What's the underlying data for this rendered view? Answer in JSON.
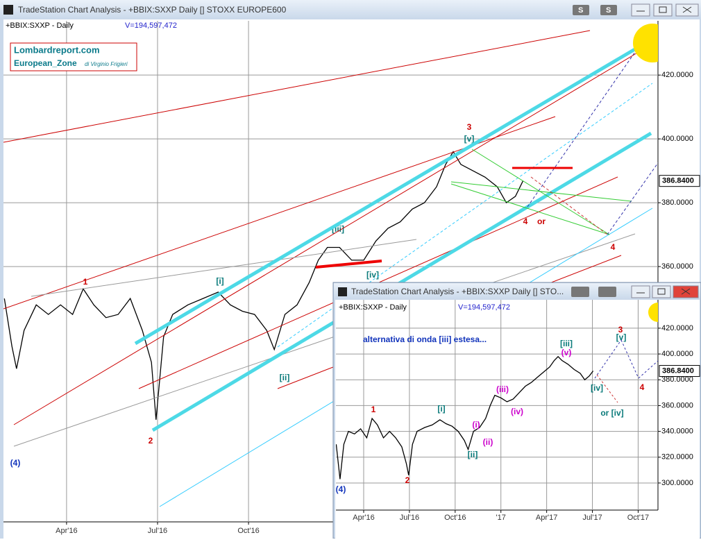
{
  "main_window": {
    "title": "TradeStation Chart Analysis - +BBIX:SXXP Daily [] STOXX EUROPE600",
    "buttons": [
      "S",
      "S"
    ],
    "logo": {
      "site": "Lombardreport.com",
      "zone": "European_Zone",
      "author": "di Virginio Frigieri"
    }
  },
  "inset_window": {
    "title": "TradeStation Chart Analysis - +BBIX:SXXP Daily [] STO..."
  },
  "chart_data": [
    {
      "type": "line",
      "volume_label": "V=194,597,472",
      "last_value_label": "386.8400",
      "x": [
        0.95,
        1.2,
        1.35,
        1.6,
        2,
        2.4,
        2.8,
        3.2,
        3.55,
        3.9,
        4.3,
        4.7,
        5.1,
        5.5,
        5.8,
        5.95,
        6.2,
        6.5,
        7,
        7.5,
        8,
        8.4,
        8.8,
        9.2,
        9.6,
        9.85,
        10.2,
        10.6,
        11,
        11.3,
        11.6,
        12,
        12.4,
        12.8,
        13.2,
        13.6,
        14,
        14.4,
        14.8,
        15.2,
        15.5,
        15.75,
        16,
        16.4,
        16.8,
        17.2,
        17.5,
        17.8,
        18.05
      ],
      "series": [
        {
          "name": "+BBIX:SXXP - Daily",
          "color": "#000000",
          "values": [
            350,
            335,
            328,
            340,
            348,
            345,
            348,
            345,
            353,
            348,
            344,
            345,
            350,
            340,
            330,
            312,
            338,
            345,
            348,
            350,
            352,
            348,
            346,
            345,
            340,
            334,
            345,
            348,
            355,
            362,
            366,
            366,
            362,
            362,
            368,
            372,
            374,
            378,
            380,
            385,
            392,
            396,
            392,
            390,
            388,
            385,
            380,
            382,
            386.84
          ]
        }
      ],
      "xlim": [
        0.92,
        22.5
      ],
      "ylim": [
        280,
        437
      ],
      "xticks": [
        {
          "value": 3,
          "label": "Apr'16"
        },
        {
          "value": 6,
          "label": "Jul'16"
        },
        {
          "value": 9,
          "label": "Oct'16"
        }
      ],
      "yticks": [
        {
          "value": 360,
          "label": "360.0000"
        },
        {
          "value": 380,
          "label": "380.0000"
        },
        {
          "value": 400,
          "label": "400.0000"
        },
        {
          "value": 420,
          "label": "420.0000"
        }
      ],
      "grid": true,
      "annotations": [
        "(4)",
        "1",
        "2",
        "[i]",
        "[ii]",
        "[iii]",
        "[iv]",
        "3",
        "[v]",
        "4",
        "or",
        "4"
      ]
    },
    {
      "type": "line",
      "volume_label": "V=194,597,472",
      "last_value_label": "386.8400",
      "x": [
        1.2,
        1.45,
        1.7,
        2,
        2.4,
        2.8,
        3.2,
        3.55,
        3.9,
        4.3,
        4.7,
        5.1,
        5.5,
        5.8,
        5.95,
        6.2,
        6.5,
        7,
        7.5,
        8,
        8.4,
        8.8,
        9.2,
        9.6,
        9.85,
        10.2,
        10.6,
        11,
        11.3,
        11.6,
        12,
        12.4,
        12.8,
        13.2,
        13.6,
        14,
        14.4,
        14.8,
        15.2,
        15.5,
        15.75,
        16,
        16.4,
        16.8,
        17.2,
        17.5,
        17.8,
        18.05
      ],
      "series": [
        {
          "name": "+BBIX:SXXP - Daily",
          "color": "#000000",
          "values": [
            330,
            303,
            330,
            340,
            338,
            342,
            335,
            350,
            345,
            335,
            340,
            335,
            328,
            315,
            306,
            330,
            340,
            343,
            345,
            349,
            346,
            344,
            340,
            333,
            326,
            340,
            343,
            350,
            360,
            368,
            366,
            363,
            365,
            370,
            375,
            378,
            382,
            386,
            390,
            395,
            398,
            395,
            392,
            388,
            385,
            380,
            383,
            386.84
          ]
        }
      ],
      "xlim": [
        1.18,
        22.3
      ],
      "ylim": [
        279,
        442
      ],
      "xticks": [
        {
          "value": 3,
          "label": "Apr'16"
        },
        {
          "value": 6,
          "label": "Jul'16"
        },
        {
          "value": 9,
          "label": "Oct'16"
        },
        {
          "value": 12,
          "label": "'17"
        },
        {
          "value": 15,
          "label": "Apr'17"
        },
        {
          "value": 18,
          "label": "Jul'17"
        },
        {
          "value": 21,
          "label": "Oct'17"
        }
      ],
      "yticks": [
        {
          "value": 300,
          "label": "300.0000"
        },
        {
          "value": 320,
          "label": "320.0000"
        },
        {
          "value": 340,
          "label": "340.0000"
        },
        {
          "value": 360,
          "label": "360.0000"
        },
        {
          "value": 380,
          "label": "380.0000"
        },
        {
          "value": 400,
          "label": "400.0000"
        },
        {
          "value": 420,
          "label": "420.0000"
        }
      ],
      "grid": true,
      "annotations": [
        "alternativa di onda [iii] estesa...",
        "1",
        "2",
        "(4)",
        "[i]",
        "[ii]",
        "(i)",
        "(ii)",
        "(iii)",
        "(iv)",
        "[iii]",
        "(v)",
        "[iv]",
        "or [iv]",
        "3",
        "[v]",
        "4"
      ]
    }
  ]
}
